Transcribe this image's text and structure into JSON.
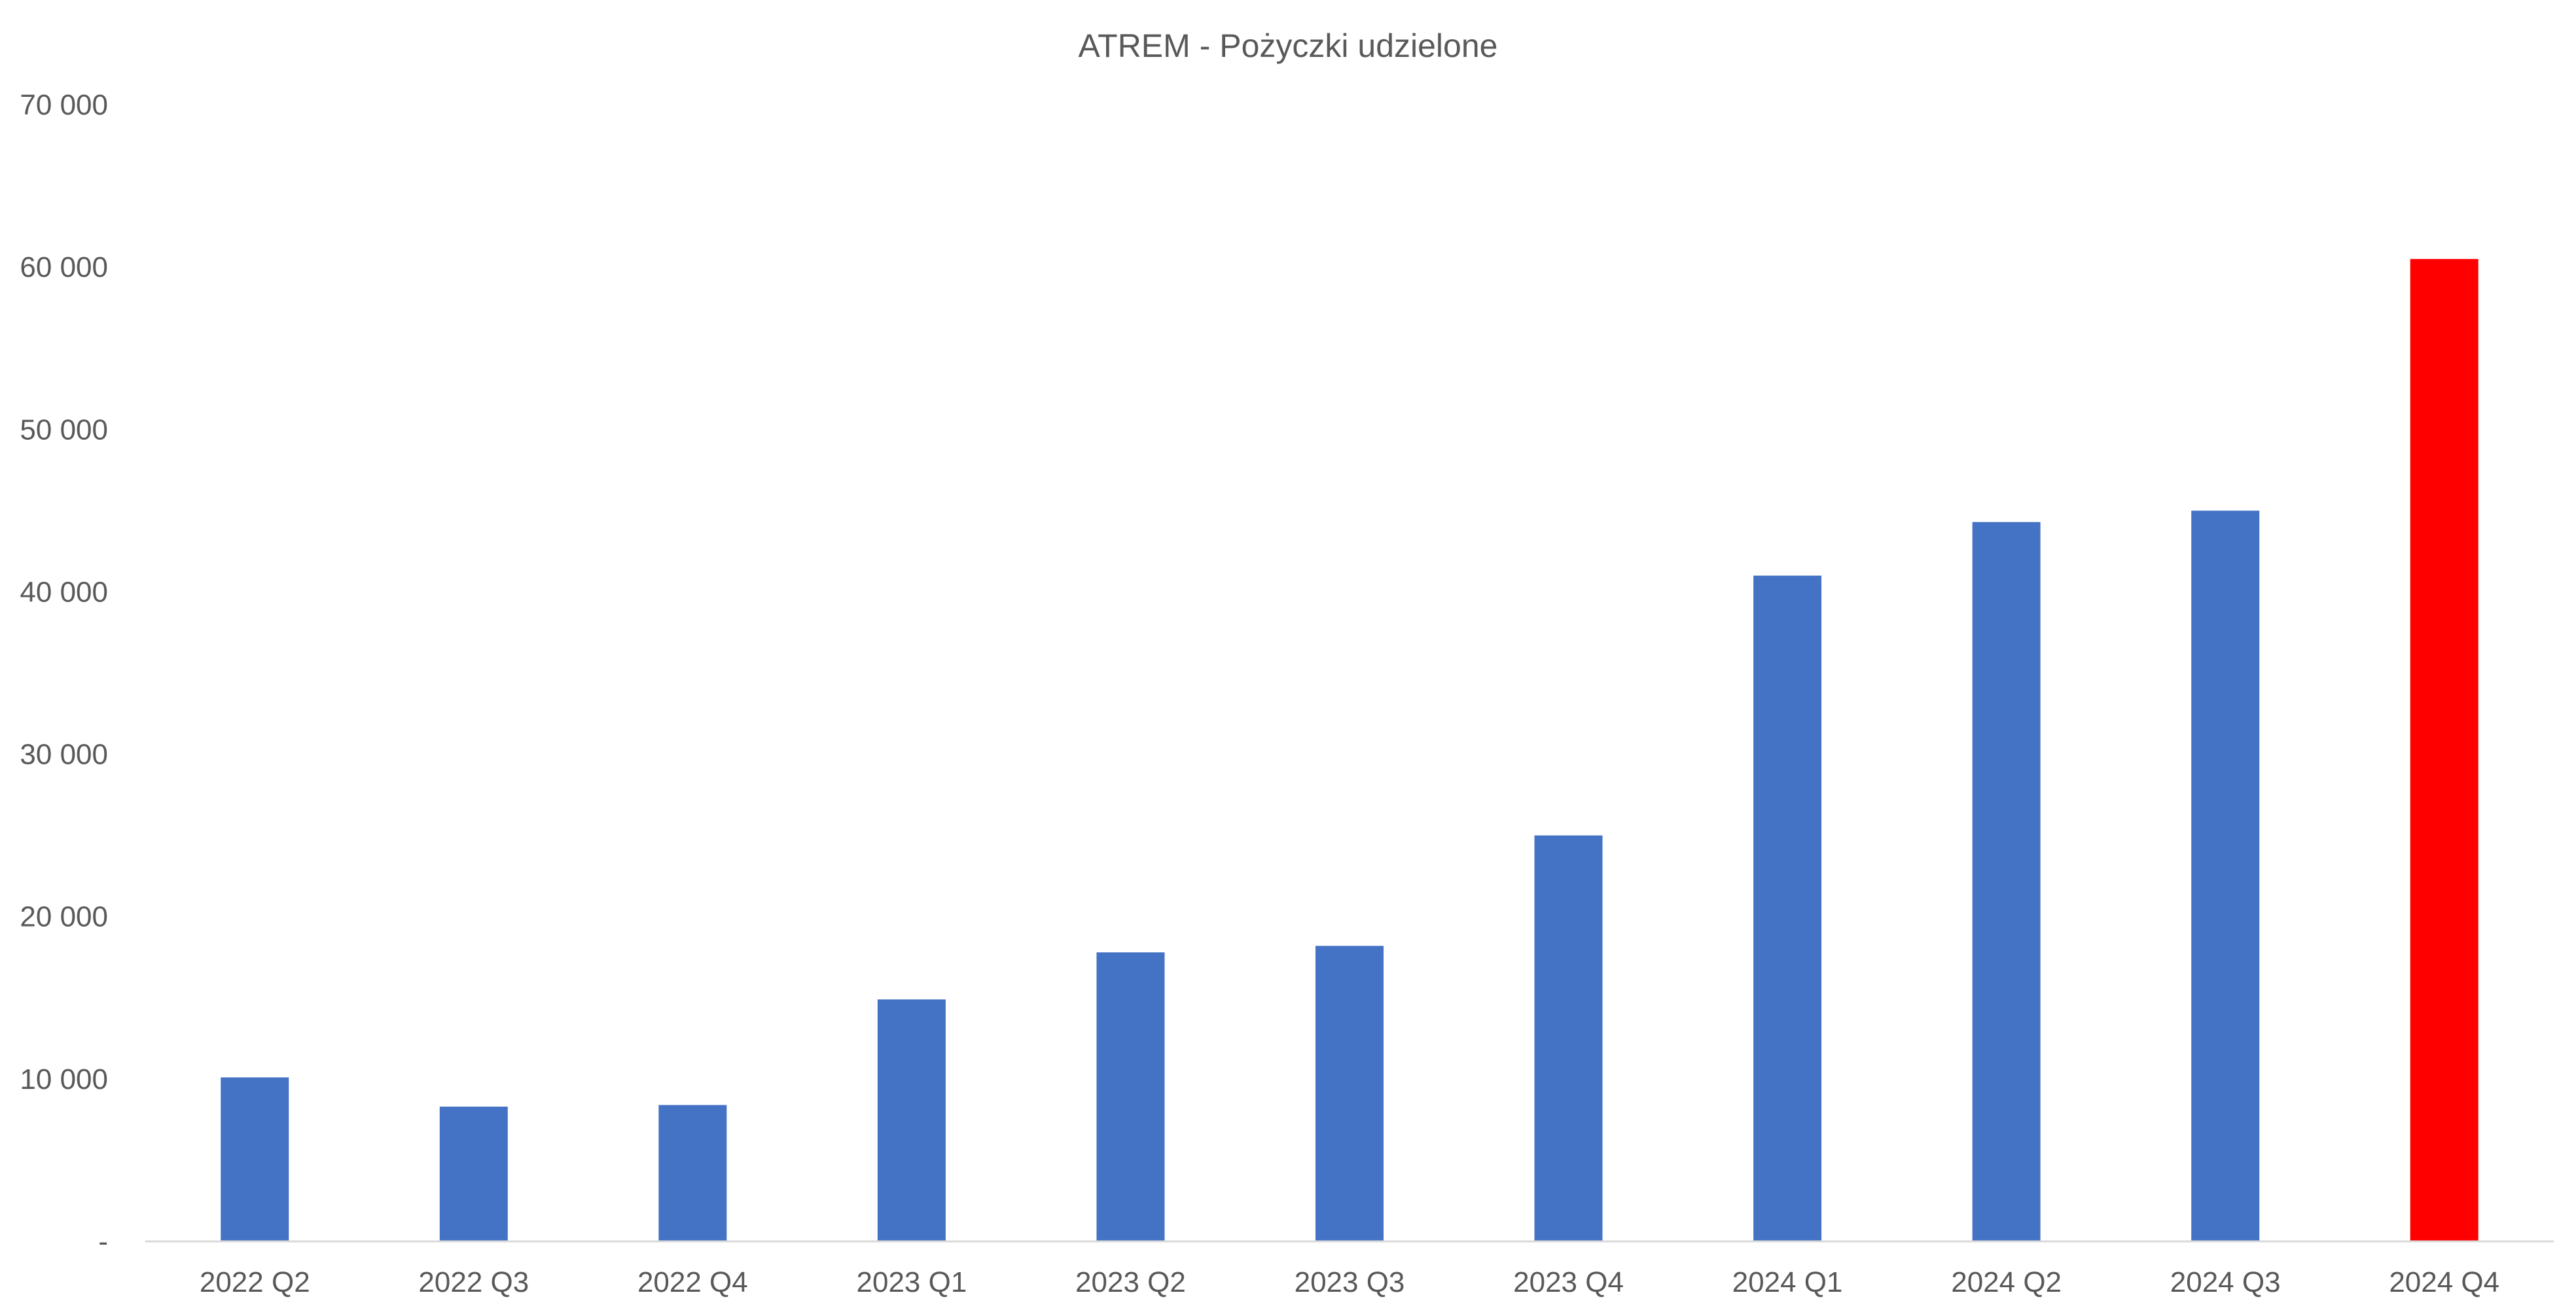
{
  "chart_data": {
    "type": "bar",
    "title": "ATREM - Pożyczki udzielone",
    "xlabel": "",
    "ylabel": "",
    "categories": [
      "2022 Q2",
      "2022 Q3",
      "2022 Q4",
      "2023 Q1",
      "2023 Q2",
      "2023 Q3",
      "2023 Q4",
      "2024 Q1",
      "2024 Q2",
      "2024 Q3",
      "2024 Q4"
    ],
    "values": [
      10100,
      8300,
      8400,
      14900,
      17800,
      18200,
      25000,
      41000,
      44300,
      45000,
      60500
    ],
    "bar_colors": [
      "#4472C4",
      "#4472C4",
      "#4472C4",
      "#4472C4",
      "#4472C4",
      "#4472C4",
      "#4472C4",
      "#4472C4",
      "#4472C4",
      "#4472C4",
      "#FF0000"
    ],
    "ylim": [
      0,
      70000
    ],
    "yticks": [
      {
        "value": 0,
        "label": "-"
      },
      {
        "value": 10000,
        "label": "10 000"
      },
      {
        "value": 20000,
        "label": "20 000"
      },
      {
        "value": 30000,
        "label": "30 000"
      },
      {
        "value": 40000,
        "label": "40 000"
      },
      {
        "value": 50000,
        "label": "50 000"
      },
      {
        "value": 60000,
        "label": "60 000"
      },
      {
        "value": 70000,
        "label": "70 000"
      }
    ],
    "grid": false,
    "legend": "none",
    "axis_color": "#D9D9D9"
  }
}
